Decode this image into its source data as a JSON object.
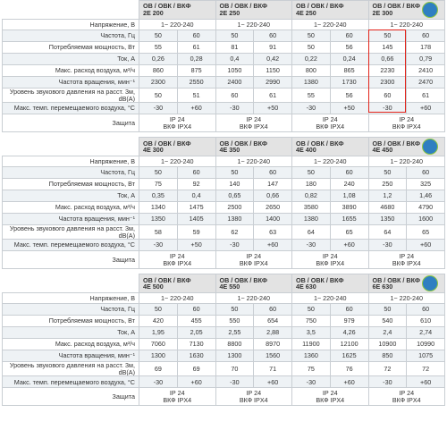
{
  "blocks": [
    {
      "models": [
        {
          "series": "ОВ / ОВК / ВКФ",
          "model": "2Е 200"
        },
        {
          "series": "ОВ / ОВК / ВКФ",
          "model": "2Е 250"
        },
        {
          "series": "ОВ / ОВК / ВКФ",
          "model": "4Е 250"
        },
        {
          "series": "ОВ / ОВК / ВКФ",
          "model": "2Е 300"
        }
      ],
      "rows": [
        {
          "label": "Напряжение, В",
          "values": [
            "1~ 220-240",
            "1~ 220-240",
            "1~ 220-240",
            "1~ 220-240"
          ]
        },
        {
          "label": "Частота, Гц",
          "values": [
            "50",
            "60",
            "50",
            "60",
            "50",
            "60",
            "50",
            "60"
          ]
        },
        {
          "label": "Потребляемая мощность, Вт",
          "values": [
            "55",
            "61",
            "81",
            "91",
            "50",
            "56",
            "145",
            "178"
          ]
        },
        {
          "label": "Ток, А",
          "values": [
            "0,26",
            "0,28",
            "0,4",
            "0,42",
            "0,22",
            "0,24",
            "0,66",
            "0,79"
          ]
        },
        {
          "label": "Макс. расход воздуха, м³/ч",
          "values": [
            "860",
            "875",
            "1050",
            "1150",
            "800",
            "865",
            "2230",
            "2410"
          ]
        },
        {
          "label": "Частота вращения, мин⁻¹",
          "values": [
            "2300",
            "2550",
            "2400",
            "2990",
            "1380",
            "1730",
            "2300",
            "2470"
          ]
        },
        {
          "label": "Уровень звукового давления на расст. 3м, dB(A)",
          "values": [
            "50",
            "51",
            "60",
            "61",
            "55",
            "56",
            "60",
            "61"
          ]
        },
        {
          "label": "Макс. темп. перемещаемого воздуха, °С",
          "values": [
            "-30",
            "+60",
            "-30",
            "+50",
            "-30",
            "+50",
            "-30",
            "+60"
          ]
        },
        {
          "label": "Защита",
          "values": [
            [
              "IP 24",
              "ВКФ IPX4"
            ],
            [
              "IP 24",
              "ВКФ IPX4"
            ],
            [
              "IP 24",
              "ВКФ IPX4"
            ],
            [
              "IP 24",
              "ВКФ IPX4"
            ]
          ]
        }
      ]
    },
    {
      "models": [
        {
          "series": "ОВ / ОВК / ВКФ",
          "model": "4Е 300"
        },
        {
          "series": "ОВ / ОВК / ВКФ",
          "model": "4Е 350"
        },
        {
          "series": "ОВ / ОВК / ВКФ",
          "model": "4Е 400"
        },
        {
          "series": "ОВ / ОВК / ВКФ",
          "model": "4Е 450"
        }
      ],
      "rows": [
        {
          "label": "Напряжение, В",
          "values": [
            "1~ 220-240",
            "1~ 220-240",
            "1~ 220-240",
            "1~ 220-240"
          ]
        },
        {
          "label": "Частота, Гц",
          "values": [
            "50",
            "60",
            "50",
            "60",
            "50",
            "60",
            "50",
            "60"
          ]
        },
        {
          "label": "Потребляемая мощность, Вт",
          "values": [
            "75",
            "92",
            "140",
            "147",
            "180",
            "240",
            "250",
            "325"
          ]
        },
        {
          "label": "Ток, А",
          "values": [
            "0,35",
            "0,4",
            "0,65",
            "0,66",
            "0,82",
            "1,08",
            "1,2",
            "1,46"
          ]
        },
        {
          "label": "Макс. расход воздуха, м³/ч",
          "values": [
            "1340",
            "1475",
            "2500",
            "2650",
            "3580",
            "3890",
            "4680",
            "4790"
          ]
        },
        {
          "label": "Частота вращения, мин⁻¹",
          "values": [
            "1350",
            "1405",
            "1380",
            "1400",
            "1380",
            "1655",
            "1350",
            "1600"
          ]
        },
        {
          "label": "Уровень звукового давления на расст. 3м, dB(A)",
          "values": [
            "58",
            "59",
            "62",
            "63",
            "64",
            "65",
            "64",
            "65"
          ]
        },
        {
          "label": "Макс. темп. перемещаемого воздуха, °С",
          "values": [
            "-30",
            "+50",
            "-30",
            "+60",
            "-30",
            "+60",
            "-30",
            "+60"
          ]
        },
        {
          "label": "Защита",
          "values": [
            [
              "IP 24",
              "ВКФ IPX4"
            ],
            [
              "IP 24",
              "ВКФ IPX4"
            ],
            [
              "IP 24",
              "ВКФ IPX4"
            ],
            [
              "IP 24",
              "ВКФ IPX4"
            ]
          ]
        }
      ]
    },
    {
      "models": [
        {
          "series": "ОВ / ОВК / ВКФ",
          "model": "4Е 500"
        },
        {
          "series": "ОВ / ОВК / ВКФ",
          "model": "4Е 550"
        },
        {
          "series": "ОВ / ОВК / ВКФ",
          "model": "4Е 630"
        },
        {
          "series": "ОВ / ОВК / ВКФ",
          "model": "6Е 630"
        }
      ],
      "rows": [
        {
          "label": "Напряжение, В",
          "values": [
            "1~ 220-240",
            "1~ 220-240",
            "1~ 220-240",
            "1~ 220-240"
          ]
        },
        {
          "label": "Частота, Гц",
          "values": [
            "50",
            "60",
            "50",
            "60",
            "50",
            "60",
            "50",
            "60"
          ]
        },
        {
          "label": "Потребляемая мощность, Вт",
          "values": [
            "420",
            "455",
            "550",
            "654",
            "750",
            "979",
            "540",
            "610"
          ]
        },
        {
          "label": "Ток, А",
          "values": [
            "1,95",
            "2,05",
            "2,55",
            "2,88",
            "3,5",
            "4,26",
            "2,4",
            "2,74"
          ]
        },
        {
          "label": "Макс. расход воздуха, м³/ч",
          "values": [
            "7060",
            "7130",
            "8800",
            "8970",
            "11900",
            "12100",
            "10900",
            "10990"
          ]
        },
        {
          "label": "Частота вращения, мин⁻¹",
          "values": [
            "1300",
            "1630",
            "1300",
            "1560",
            "1360",
            "1625",
            "850",
            "1075"
          ]
        },
        {
          "label": "Уровень звукового давления на расст. 3м, dB(A)",
          "values": [
            "69",
            "69",
            "70",
            "71",
            "75",
            "76",
            "72",
            "72"
          ]
        },
        {
          "label": "Макс. темп. перемещаемого воздуха, °С",
          "values": [
            "-30",
            "+60",
            "-30",
            "+60",
            "-30",
            "+60",
            "-30",
            "+60"
          ]
        },
        {
          "label": "Защита",
          "values": [
            [
              "IP 24",
              "ВКФ IPX4"
            ],
            [
              "IP 24",
              "ВКФ IPX4"
            ],
            [
              "IP 24",
              "ВКФ IPX4"
            ],
            [
              "IP 24",
              "ВКФ IPX4"
            ]
          ]
        }
      ]
    }
  ]
}
